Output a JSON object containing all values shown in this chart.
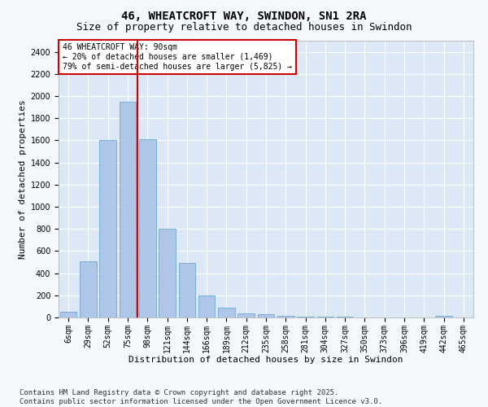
{
  "title": "46, WHEATCROFT WAY, SWINDON, SN1 2RA",
  "subtitle": "Size of property relative to detached houses in Swindon",
  "xlabel": "Distribution of detached houses by size in Swindon",
  "ylabel": "Number of detached properties",
  "categories": [
    "6sqm",
    "29sqm",
    "52sqm",
    "75sqm",
    "98sqm",
    "121sqm",
    "144sqm",
    "166sqm",
    "189sqm",
    "212sqm",
    "235sqm",
    "258sqm",
    "281sqm",
    "304sqm",
    "327sqm",
    "350sqm",
    "373sqm",
    "396sqm",
    "419sqm",
    "442sqm",
    "465sqm"
  ],
  "values": [
    55,
    510,
    1600,
    1950,
    1610,
    800,
    490,
    200,
    85,
    40,
    28,
    18,
    10,
    7,
    4,
    2,
    2,
    1,
    0,
    15,
    0
  ],
  "bar_color": "#aec6e8",
  "bar_edge_color": "#5a9fd4",
  "vline_x": 3.5,
  "vline_color": "#cc0000",
  "annotation_title": "46 WHEATCROFT WAY: 90sqm",
  "annotation_line2": "← 20% of detached houses are smaller (1,469)",
  "annotation_line3": "79% of semi-detached houses are larger (5,825) →",
  "annotation_box_color": "#ffffff",
  "annotation_border_color": "#cc0000",
  "ylim": [
    0,
    2500
  ],
  "yticks": [
    0,
    200,
    400,
    600,
    800,
    1000,
    1200,
    1400,
    1600,
    1800,
    2000,
    2200,
    2400
  ],
  "bg_color": "#dce8f5",
  "fig_bg_color": "#f4f8fc",
  "grid_color": "#ffffff",
  "footer_line1": "Contains HM Land Registry data © Crown copyright and database right 2025.",
  "footer_line2": "Contains public sector information licensed under the Open Government Licence v3.0.",
  "title_fontsize": 10,
  "subtitle_fontsize": 9,
  "axis_label_fontsize": 8,
  "tick_fontsize": 7,
  "footer_fontsize": 6.5,
  "annotation_fontsize": 7
}
